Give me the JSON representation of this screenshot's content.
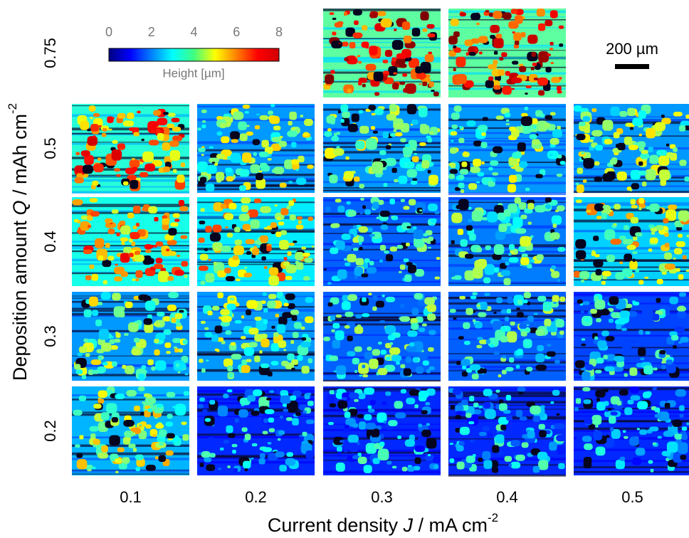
{
  "colorbar": {
    "label": "Height [µm]",
    "ticks": [
      0,
      2,
      4,
      6,
      8
    ]
  },
  "scale_bar": "200 µm",
  "x_axis": {
    "label": {
      "before": "Current density ",
      "symbol": "J",
      "unit": " / mA cm",
      "exponent": "-2"
    },
    "ticks": [
      "0.1",
      "0.2",
      "0.3",
      "0.4",
      "0.5"
    ]
  },
  "y_axis": {
    "label": {
      "before": "Deposition amount ",
      "symbol": "Q",
      "unit": " / mAh cm",
      "exponent": "-2"
    },
    "ticks": [
      "0.75",
      "0.5",
      "0.4",
      "0.3",
      "0.2"
    ]
  }
}
